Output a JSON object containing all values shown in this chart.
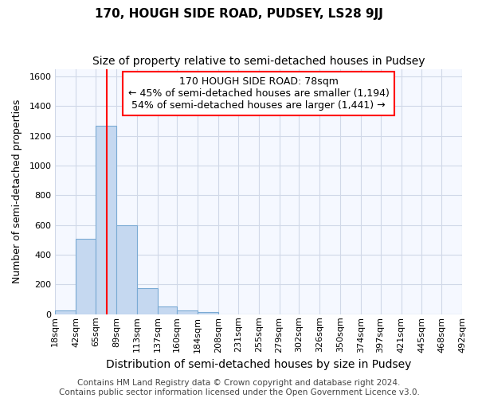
{
  "title": "170, HOUGH SIDE ROAD, PUDSEY, LS28 9JJ",
  "subtitle": "Size of property relative to semi-detached houses in Pudsey",
  "xlabel": "Distribution of semi-detached houses by size in Pudsey",
  "ylabel": "Number of semi-detached properties",
  "bar_color": "#c5d8f0",
  "bar_edge_color": "#7aaad4",
  "background_color": "#ffffff",
  "plot_bg_color": "#f5f8ff",
  "grid_color": "#d0d8e8",
  "property_line_x": 78,
  "property_line_color": "red",
  "annotation_line1": "170 HOUGH SIDE ROAD: 78sqm",
  "annotation_line2": "← 45% of semi-detached houses are smaller (1,194)",
  "annotation_line3": "54% of semi-detached houses are larger (1,441) →",
  "annotation_box_color": "white",
  "annotation_box_edge": "red",
  "bin_edges": [
    18,
    42,
    65,
    89,
    113,
    137,
    160,
    184,
    208,
    231,
    255,
    279,
    302,
    326,
    350,
    374,
    397,
    421,
    445,
    468,
    492
  ],
  "bin_counts": [
    27,
    505,
    1270,
    600,
    175,
    52,
    28,
    14,
    0,
    0,
    0,
    0,
    0,
    0,
    0,
    0,
    0,
    0,
    0,
    0
  ],
  "ylim": [
    0,
    1650
  ],
  "yticks": [
    0,
    200,
    400,
    600,
    800,
    1000,
    1200,
    1400,
    1600
  ],
  "tick_labels": [
    "18sqm",
    "42sqm",
    "65sqm",
    "89sqm",
    "113sqm",
    "137sqm",
    "160sqm",
    "184sqm",
    "208sqm",
    "231sqm",
    "255sqm",
    "279sqm",
    "302sqm",
    "326sqm",
    "350sqm",
    "374sqm",
    "397sqm",
    "421sqm",
    "445sqm",
    "468sqm",
    "492sqm"
  ],
  "footer": "Contains HM Land Registry data © Crown copyright and database right 2024.\nContains public sector information licensed under the Open Government Licence v3.0.",
  "title_fontsize": 11,
  "subtitle_fontsize": 10,
  "xlabel_fontsize": 10,
  "ylabel_fontsize": 9,
  "tick_fontsize": 8,
  "annot_fontsize": 9,
  "footer_fontsize": 7.5
}
